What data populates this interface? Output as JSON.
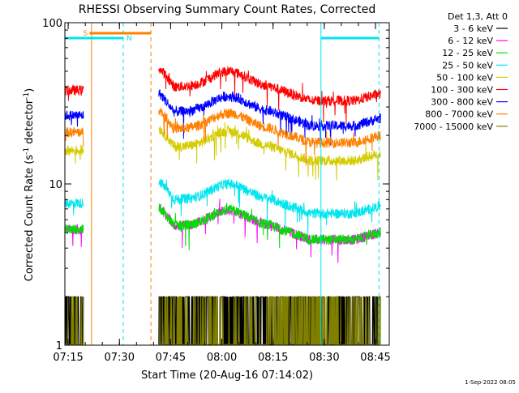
{
  "chart_data": {
    "type": "line",
    "title": "RHESSI Observing Summary Count Rates, Corrected",
    "xlabel": "Start Time (20-Aug-16 07:14:02)",
    "ylabel_main": "Corrected Count Rate (s",
    "ylabel_sup1": "-1",
    "ylabel_mid": " detector",
    "ylabel_sup2": "-1",
    "ylabel_end": ")",
    "yscale": "log",
    "ylim": [
      1,
      100
    ],
    "xlim_minutes": [
      0,
      95
    ],
    "y_ticks": [
      {
        "value": 1,
        "label": "1"
      },
      {
        "value": 10,
        "label": "10"
      },
      {
        "value": 100,
        "label": "100"
      }
    ],
    "x_ticks": [
      {
        "minute": 0.97,
        "label": "07:15"
      },
      {
        "minute": 15.97,
        "label": "07:30"
      },
      {
        "minute": 30.97,
        "label": "07:45"
      },
      {
        "minute": 45.97,
        "label": "08:00"
      },
      {
        "minute": 60.97,
        "label": "08:15"
      },
      {
        "minute": 75.97,
        "label": "08:30"
      },
      {
        "minute": 90.97,
        "label": "08:45"
      }
    ],
    "legend_header": "Det 1,3, Att 0",
    "legend_placement": "outside-right",
    "series": [
      {
        "name": "3 - 6 keV",
        "color": "#000000",
        "typical": 1.4
      },
      {
        "name": "6 - 12 keV",
        "color": "#ff00ff",
        "typical": 5.5
      },
      {
        "name": "12 - 25 keV",
        "color": "#00e000",
        "typical": 5.5
      },
      {
        "name": "25 - 50 keV",
        "color": "#00e5ee",
        "typical": 8
      },
      {
        "name": "50 - 100 keV",
        "color": "#d4cc00",
        "typical": 17
      },
      {
        "name": "100 - 300 keV",
        "color": "#ff0000",
        "typical": 40
      },
      {
        "name": "300 - 800 keV",
        "color": "#0000ff",
        "typical": 28
      },
      {
        "name": "800 - 7000 keV",
        "color": "#ff8000",
        "typical": 22
      },
      {
        "name": "7000 - 15000 keV",
        "color": "#808000",
        "typical": 1.4
      }
    ],
    "flags": [
      {
        "label": "S",
        "color": "#ff8000",
        "start_minute": 7.2,
        "end_minute": 25.2
      },
      {
        "label": "N",
        "color": "#00e5ee",
        "start_minute": 0,
        "end_minute": 17.1
      },
      {
        "label": "",
        "color": "#00e5ee",
        "start_minute": 75.0,
        "end_minute": 92.0
      }
    ],
    "gap_lines": [
      {
        "minute": 7.8,
        "color": "#ff8000",
        "style": "solid"
      },
      {
        "minute": 17.1,
        "color": "#00e5ee",
        "style": "dashed"
      },
      {
        "minute": 25.2,
        "color": "#ff8000",
        "style": "dashed"
      },
      {
        "minute": 75.0,
        "color": "#00e5ee",
        "style": "solid"
      },
      {
        "minute": 92.0,
        "color": "#00e5ee",
        "style": "dashed"
      }
    ],
    "data_segments_minutes": [
      [
        0,
        5.5
      ],
      [
        27.5,
        92.5
      ]
    ]
  },
  "footer_timestamp": "1-Sep-2022 08:05"
}
